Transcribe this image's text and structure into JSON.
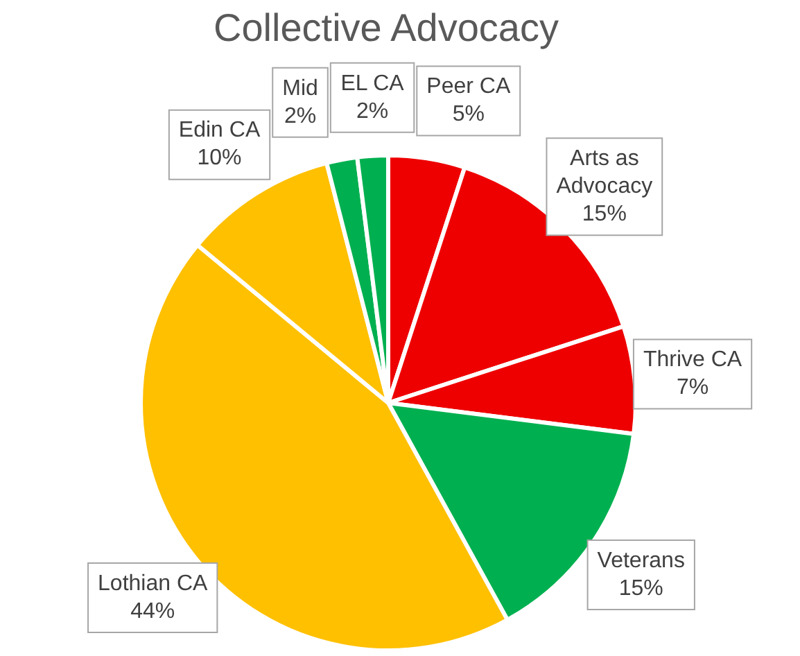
{
  "chart_data": {
    "type": "pie",
    "title": "Collective Advocacy",
    "categories": [
      "Peer CA",
      "Arts as Advocacy",
      "Thrive CA",
      "Veterans",
      "Lothian CA",
      "Edin CA",
      "Mid",
      "EL CA"
    ],
    "values": [
      5,
      15,
      7,
      15,
      44,
      10,
      2,
      2
    ],
    "value_labels": [
      "5%",
      "15%",
      "7%",
      "15%",
      "44%",
      "10%",
      "2%",
      "2%"
    ],
    "colors": [
      "#ee0000",
      "#ee0000",
      "#ee0000",
      "#00b050",
      "#ffc000",
      "#ffc000",
      "#00b050",
      "#00b050"
    ],
    "legend": false
  }
}
